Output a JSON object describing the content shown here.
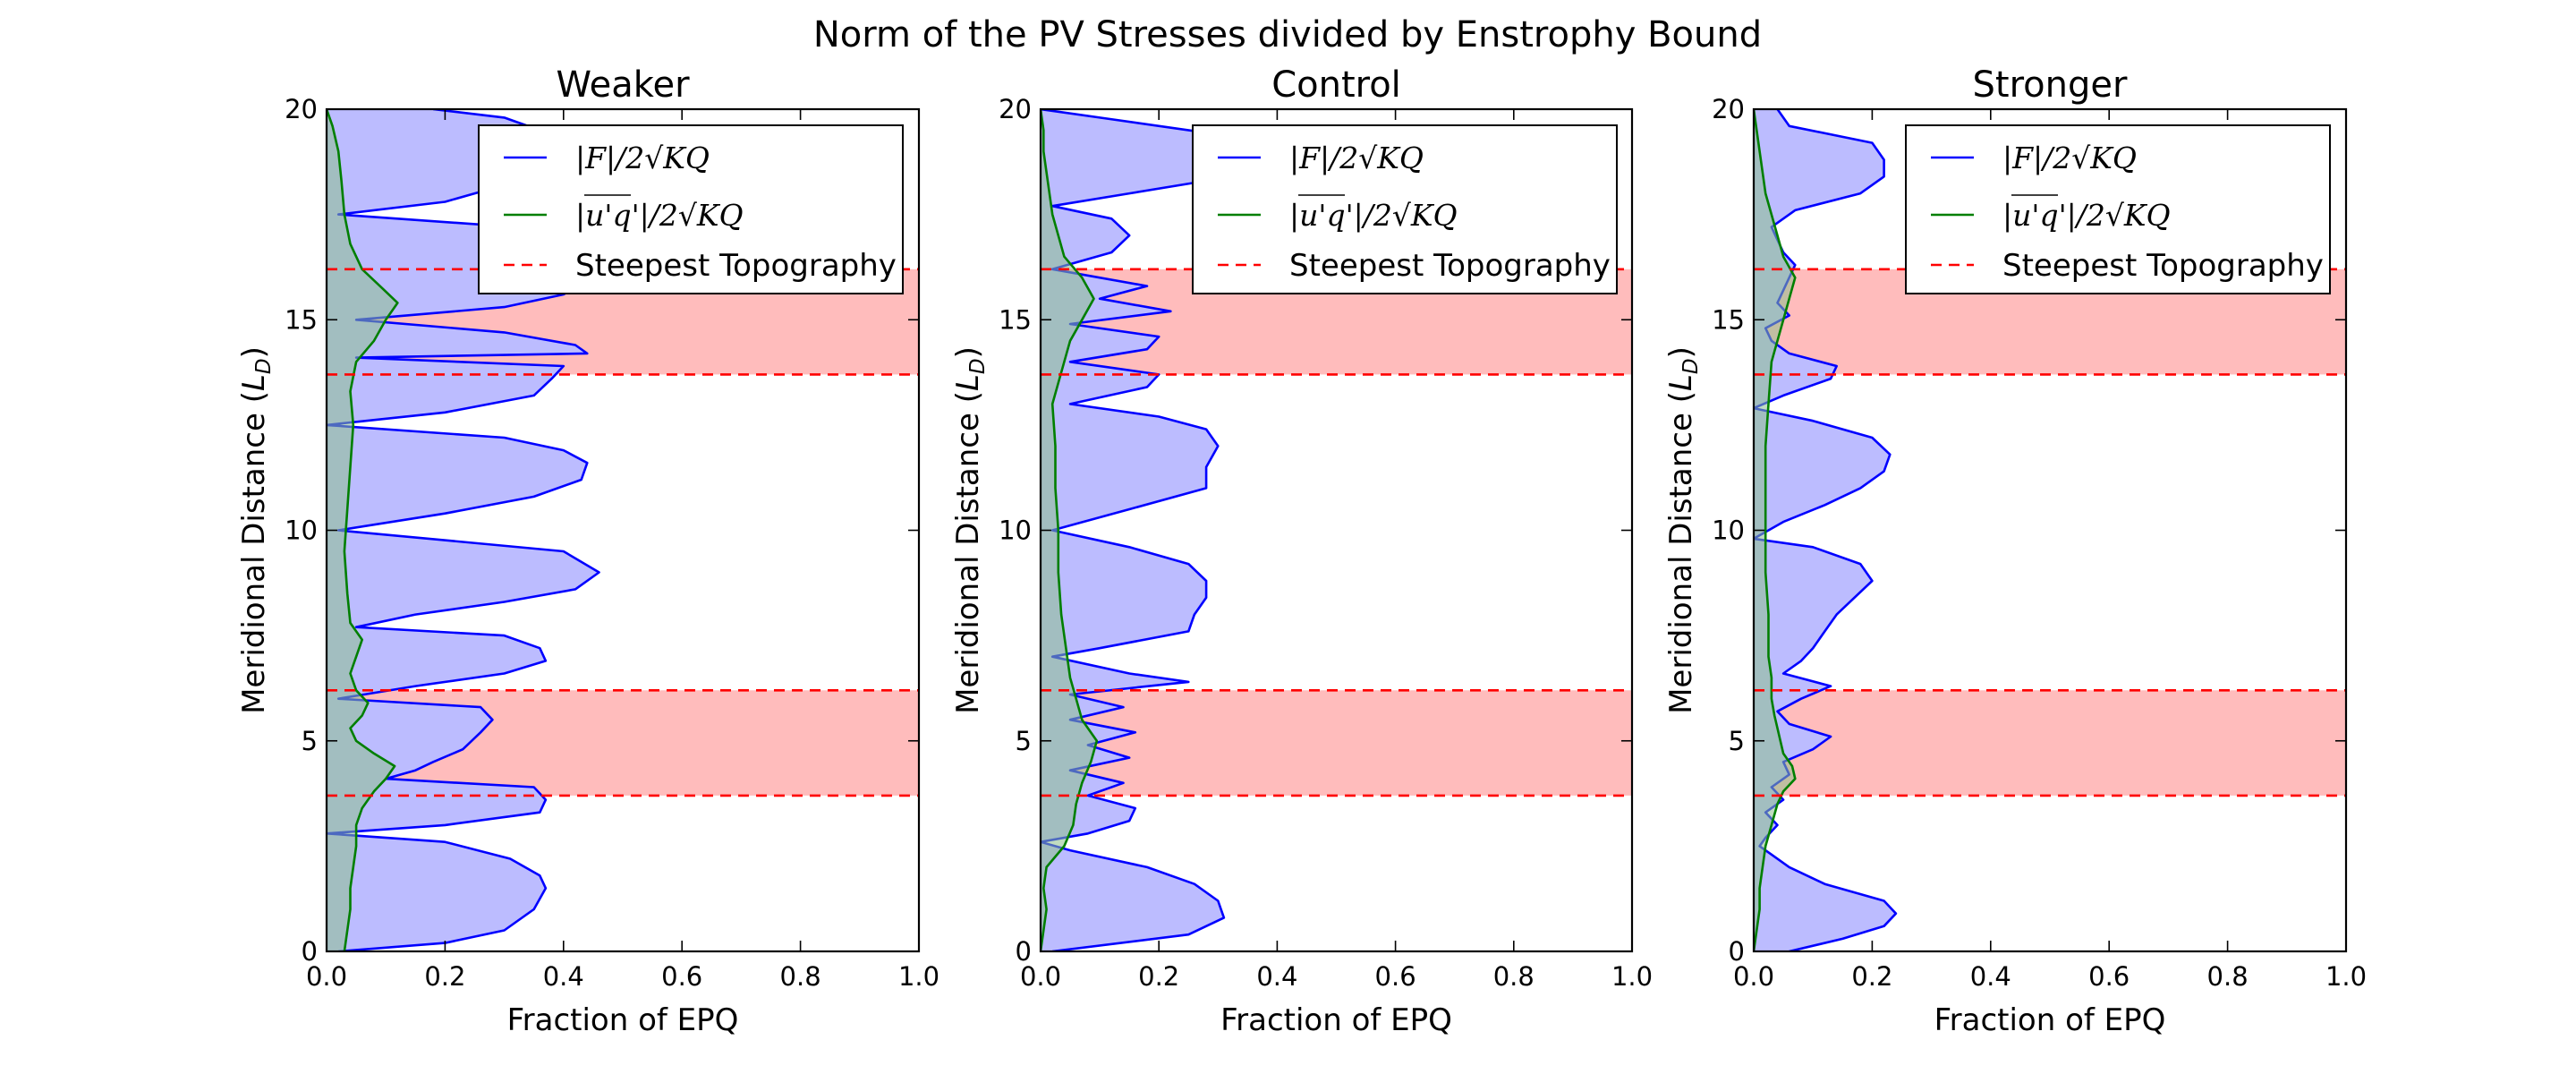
{
  "figure": {
    "title": "Norm of the PV Stresses divided by Enstrophy Bound"
  },
  "colors": {
    "f_line": "#0000ff",
    "f_fill": "#bcbcff",
    "uq_line": "#007f00",
    "uq_fill": "#8cc08c",
    "topo_band": "#ffbcbc",
    "topo_line": "#ff0000"
  },
  "chart_data": [
    {
      "type": "line",
      "orientation": "horizontal-profile",
      "title": "Weaker",
      "xlabel": "Fraction of EPQ",
      "ylabel": "Meridional Distance (L_D)",
      "xlim": [
        0,
        1.0
      ],
      "ylim": [
        0,
        20
      ],
      "xticks": [
        "0.0",
        "0.2",
        "0.4",
        "0.6",
        "0.8",
        "1.0"
      ],
      "yticks": [
        "0",
        "5",
        "10",
        "15",
        "20"
      ],
      "legend_placement": "top-right",
      "legend": [
        "|F|/2√KQ",
        "|u'q'|/2√KQ",
        "Steepest Topography"
      ],
      "topography_bands": [
        [
          3.7,
          6.2
        ],
        [
          13.7,
          16.2
        ]
      ],
      "series": [
        {
          "name": "|F|/2√KQ",
          "y": [
            0,
            0.2,
            0.5,
            1.0,
            1.5,
            1.8,
            2.2,
            2.6,
            2.8,
            3.0,
            3.3,
            3.6,
            3.9,
            4.1,
            4.3,
            4.5,
            4.8,
            5.2,
            5.5,
            5.8,
            6.0,
            6.3,
            6.6,
            6.9,
            7.2,
            7.5,
            7.7,
            8.0,
            8.3,
            8.6,
            9.0,
            9.5,
            10.0,
            10.4,
            10.8,
            11.2,
            11.6,
            11.9,
            12.2,
            12.5,
            12.8,
            13.2,
            13.6,
            13.9,
            14.1,
            14.2,
            14.4,
            14.7,
            15.0,
            15.3,
            15.6,
            16.0,
            16.4,
            16.8,
            17.2,
            17.5,
            17.8,
            18.2,
            18.6,
            18.9,
            19.2,
            19.5,
            19.8,
            20.0
          ],
          "values": [
            0.02,
            0.2,
            0.3,
            0.35,
            0.37,
            0.36,
            0.31,
            0.2,
            0.0,
            0.2,
            0.36,
            0.37,
            0.35,
            0.1,
            0.15,
            0.18,
            0.23,
            0.26,
            0.28,
            0.26,
            0.02,
            0.15,
            0.3,
            0.37,
            0.36,
            0.3,
            0.05,
            0.15,
            0.3,
            0.42,
            0.46,
            0.4,
            0.02,
            0.2,
            0.35,
            0.43,
            0.44,
            0.4,
            0.3,
            0.0,
            0.2,
            0.35,
            0.38,
            0.4,
            0.05,
            0.44,
            0.42,
            0.3,
            0.05,
            0.3,
            0.4,
            0.45,
            0.42,
            0.38,
            0.32,
            0.02,
            0.2,
            0.3,
            0.35,
            0.33,
            0.35,
            0.36,
            0.3,
            0.18
          ]
        },
        {
          "name": "|u'q'|/2√KQ",
          "y": [
            0,
            0.5,
            1.0,
            1.5,
            2.0,
            2.5,
            3.0,
            3.4,
            3.8,
            4.1,
            4.4,
            4.7,
            5.0,
            5.3,
            5.6,
            5.9,
            6.2,
            6.6,
            7.0,
            7.4,
            7.8,
            8.5,
            9.5,
            10.5,
            11.5,
            12.5,
            13.3,
            14.0,
            14.5,
            15.0,
            15.4,
            15.8,
            16.2,
            16.8,
            17.5,
            18.3,
            19.0,
            19.6,
            20.0
          ],
          "values": [
            0.03,
            0.035,
            0.04,
            0.04,
            0.045,
            0.05,
            0.05,
            0.06,
            0.08,
            0.1,
            0.115,
            0.08,
            0.05,
            0.04,
            0.06,
            0.07,
            0.05,
            0.04,
            0.05,
            0.06,
            0.04,
            0.035,
            0.03,
            0.035,
            0.04,
            0.045,
            0.04,
            0.05,
            0.08,
            0.1,
            0.12,
            0.09,
            0.06,
            0.04,
            0.03,
            0.025,
            0.02,
            0.01,
            0.0
          ]
        }
      ]
    },
    {
      "type": "line",
      "orientation": "horizontal-profile",
      "title": "Control",
      "xlabel": "Fraction of EPQ",
      "ylabel": "Meridional Distance (L_D)",
      "xlim": [
        0,
        1.0
      ],
      "ylim": [
        0,
        20
      ],
      "xticks": [
        "0.0",
        "0.2",
        "0.4",
        "0.6",
        "0.8",
        "1.0"
      ],
      "yticks": [
        "0",
        "5",
        "10",
        "15",
        "20"
      ],
      "legend_placement": "top-right",
      "legend": [
        "|F|/2√KQ",
        "|u'q'|/2√KQ",
        "Steepest Topography"
      ],
      "topography_bands": [
        [
          3.7,
          6.2
        ],
        [
          13.7,
          16.2
        ]
      ],
      "series": [
        {
          "name": "|F|/2√KQ",
          "y": [
            0,
            0.4,
            0.8,
            1.2,
            1.6,
            2.0,
            2.4,
            2.6,
            2.8,
            3.1,
            3.4,
            3.7,
            4.0,
            4.3,
            4.6,
            4.9,
            5.2,
            5.5,
            5.8,
            6.1,
            6.4,
            6.6,
            7.0,
            7.2,
            7.6,
            8.0,
            8.4,
            8.8,
            9.2,
            9.6,
            10.0,
            10.5,
            11.0,
            11.5,
            12.0,
            12.4,
            12.7,
            13.0,
            13.4,
            13.7,
            14.0,
            14.3,
            14.6,
            14.9,
            15.2,
            15.5,
            15.8,
            16.2,
            16.6,
            17.0,
            17.4,
            17.7,
            18.0,
            18.3,
            18.6,
            19.0,
            19.4,
            19.8,
            20.0
          ],
          "values": [
            0.02,
            0.25,
            0.31,
            0.3,
            0.26,
            0.18,
            0.05,
            0.0,
            0.08,
            0.15,
            0.16,
            0.08,
            0.14,
            0.05,
            0.15,
            0.08,
            0.16,
            0.05,
            0.14,
            0.05,
            0.25,
            0.15,
            0.02,
            0.1,
            0.25,
            0.26,
            0.28,
            0.28,
            0.25,
            0.15,
            0.02,
            0.15,
            0.28,
            0.28,
            0.3,
            0.28,
            0.2,
            0.05,
            0.18,
            0.2,
            0.05,
            0.18,
            0.2,
            0.05,
            0.22,
            0.1,
            0.18,
            0.02,
            0.12,
            0.15,
            0.12,
            0.02,
            0.15,
            0.28,
            0.3,
            0.32,
            0.3,
            0.1,
            0.0
          ]
        },
        {
          "name": "|u'q'|/2√KQ",
          "y": [
            0,
            0.5,
            1.0,
            1.5,
            2.0,
            2.5,
            3.0,
            3.5,
            4.0,
            4.5,
            5.0,
            5.5,
            6.0,
            6.5,
            7.0,
            7.5,
            8.0,
            9.0,
            10.0,
            11.0,
            12.0,
            13.0,
            13.5,
            14.0,
            14.5,
            15.0,
            15.5,
            16.0,
            16.5,
            17.0,
            17.5,
            18.0,
            18.5,
            19.0,
            19.5,
            20.0
          ],
          "values": [
            0.0,
            0.005,
            0.01,
            0.005,
            0.01,
            0.04,
            0.055,
            0.06,
            0.07,
            0.085,
            0.095,
            0.07,
            0.06,
            0.05,
            0.045,
            0.04,
            0.035,
            0.03,
            0.03,
            0.025,
            0.025,
            0.02,
            0.03,
            0.04,
            0.05,
            0.07,
            0.09,
            0.07,
            0.04,
            0.03,
            0.02,
            0.015,
            0.01,
            0.005,
            0.005,
            0.0
          ]
        }
      ]
    },
    {
      "type": "line",
      "orientation": "horizontal-profile",
      "title": "Stronger",
      "xlabel": "Fraction of EPQ",
      "ylabel": "Meridional Distance (L_D)",
      "xlim": [
        0,
        1.0
      ],
      "ylim": [
        0,
        20
      ],
      "xticks": [
        "0.0",
        "0.2",
        "0.4",
        "0.6",
        "0.8",
        "1.0"
      ],
      "yticks": [
        "0",
        "5",
        "10",
        "15",
        "20"
      ],
      "legend_placement": "top-right",
      "legend": [
        "|F|/2√KQ",
        "|u'q'|/2√KQ",
        "Steepest Topography"
      ],
      "topography_bands": [
        [
          3.7,
          6.2
        ],
        [
          13.7,
          16.2
        ]
      ],
      "series": [
        {
          "name": "|F|/2√KQ",
          "y": [
            0,
            0.3,
            0.6,
            0.9,
            1.2,
            1.6,
            2.0,
            2.3,
            2.5,
            2.7,
            3.0,
            3.3,
            3.6,
            3.9,
            4.2,
            4.5,
            4.8,
            5.1,
            5.4,
            5.7,
            6.0,
            6.3,
            6.6,
            6.9,
            7.2,
            7.6,
            8.0,
            8.4,
            8.8,
            9.2,
            9.6,
            9.8,
            10.2,
            10.6,
            11.0,
            11.4,
            11.8,
            12.2,
            12.6,
            12.9,
            13.2,
            13.6,
            13.9,
            14.2,
            14.5,
            14.8,
            15.1,
            15.4,
            15.7,
            16.0,
            16.3,
            16.6,
            16.9,
            17.2,
            17.6,
            18.0,
            18.4,
            18.8,
            19.2,
            19.6,
            20.0
          ],
          "values": [
            0.06,
            0.15,
            0.22,
            0.24,
            0.22,
            0.12,
            0.06,
            0.03,
            0.01,
            0.02,
            0.04,
            0.02,
            0.05,
            0.03,
            0.06,
            0.05,
            0.1,
            0.13,
            0.06,
            0.04,
            0.08,
            0.13,
            0.05,
            0.08,
            0.1,
            0.12,
            0.14,
            0.17,
            0.2,
            0.18,
            0.1,
            0.0,
            0.05,
            0.12,
            0.18,
            0.22,
            0.23,
            0.2,
            0.1,
            0.0,
            0.05,
            0.13,
            0.14,
            0.06,
            0.03,
            0.02,
            0.06,
            0.04,
            0.05,
            0.06,
            0.07,
            0.05,
            0.04,
            0.03,
            0.07,
            0.18,
            0.22,
            0.22,
            0.2,
            0.06,
            0.04
          ]
        },
        {
          "name": "|u'q'|/2√KQ",
          "y": [
            0,
            0.5,
            1.0,
            1.5,
            2.0,
            2.5,
            3.0,
            3.5,
            3.8,
            4.1,
            4.4,
            4.7,
            5.0,
            5.3,
            5.6,
            6.0,
            6.5,
            7.0,
            8.0,
            9.0,
            10.0,
            11.0,
            12.0,
            13.0,
            14.0,
            14.5,
            15.0,
            15.5,
            16.0,
            16.5,
            17.0,
            18.0,
            19.0,
            20.0
          ],
          "values": [
            0.0,
            0.005,
            0.01,
            0.01,
            0.015,
            0.02,
            0.03,
            0.04,
            0.05,
            0.07,
            0.065,
            0.05,
            0.045,
            0.04,
            0.035,
            0.03,
            0.03,
            0.025,
            0.025,
            0.02,
            0.02,
            0.02,
            0.02,
            0.025,
            0.03,
            0.04,
            0.05,
            0.06,
            0.07,
            0.05,
            0.04,
            0.02,
            0.01,
            0.0
          ]
        }
      ]
    }
  ]
}
